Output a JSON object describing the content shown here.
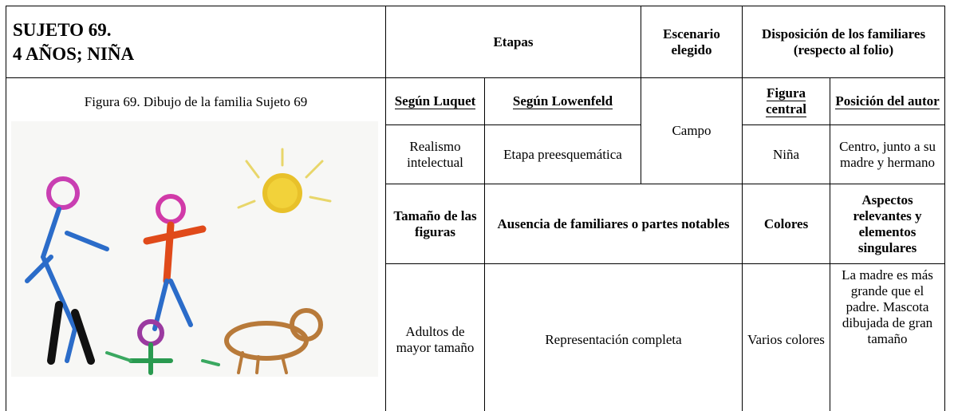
{
  "header": {
    "title_line1": "SUJETO 69.",
    "title_line2": "4 AÑOS; NIÑA",
    "etapas": "Etapas",
    "escenario": "Escenario elegido",
    "disposicion": "Disposición de los familiares",
    "disposicion_sub": "(respecto al folio)"
  },
  "figure": {
    "caption": "Figura 69. Dibujo de la familia Sujeto 69"
  },
  "table": {
    "rows": [
      [
        "Según Luquet",
        "Según Lowenfeld",
        "Campo",
        "Figura central",
        "Posición del autor"
      ],
      [
        "Realismo intelectual",
        "Etapa preesquemática",
        "Niña",
        "Centro, junto a su madre y hermano"
      ],
      [
        "Tamaño de las figuras",
        "Ausencia de familiares o partes notables",
        "Colores",
        "Aspectos relevantes y elementos singulares"
      ],
      [
        "Adultos de mayor tamaño",
        "Representación completa",
        "Varios colores",
        "La madre es más grande que el padre. Mascota dibujada de gran tamaño"
      ]
    ]
  }
}
